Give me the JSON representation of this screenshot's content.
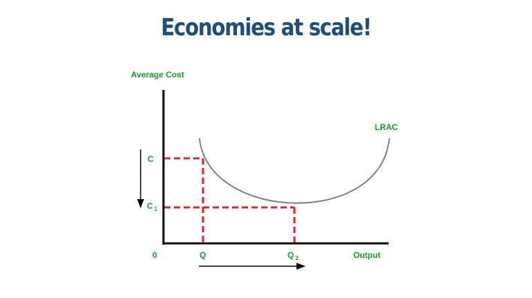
{
  "title": "Economies at scale!",
  "labels": {
    "y_axis": "Average Cost",
    "x_axis": "Output",
    "origin": "0",
    "curve": "LRAC",
    "c": "C",
    "c1_main": "C",
    "c1_sub": "1",
    "q": "Q",
    "q2_main": "Q",
    "q2_sub": "2"
  },
  "colors": {
    "title": "#1f4e79",
    "labels": "#1a9a2a",
    "curve": "#808080",
    "guides": "#e0202a",
    "axes": "#000000"
  }
}
